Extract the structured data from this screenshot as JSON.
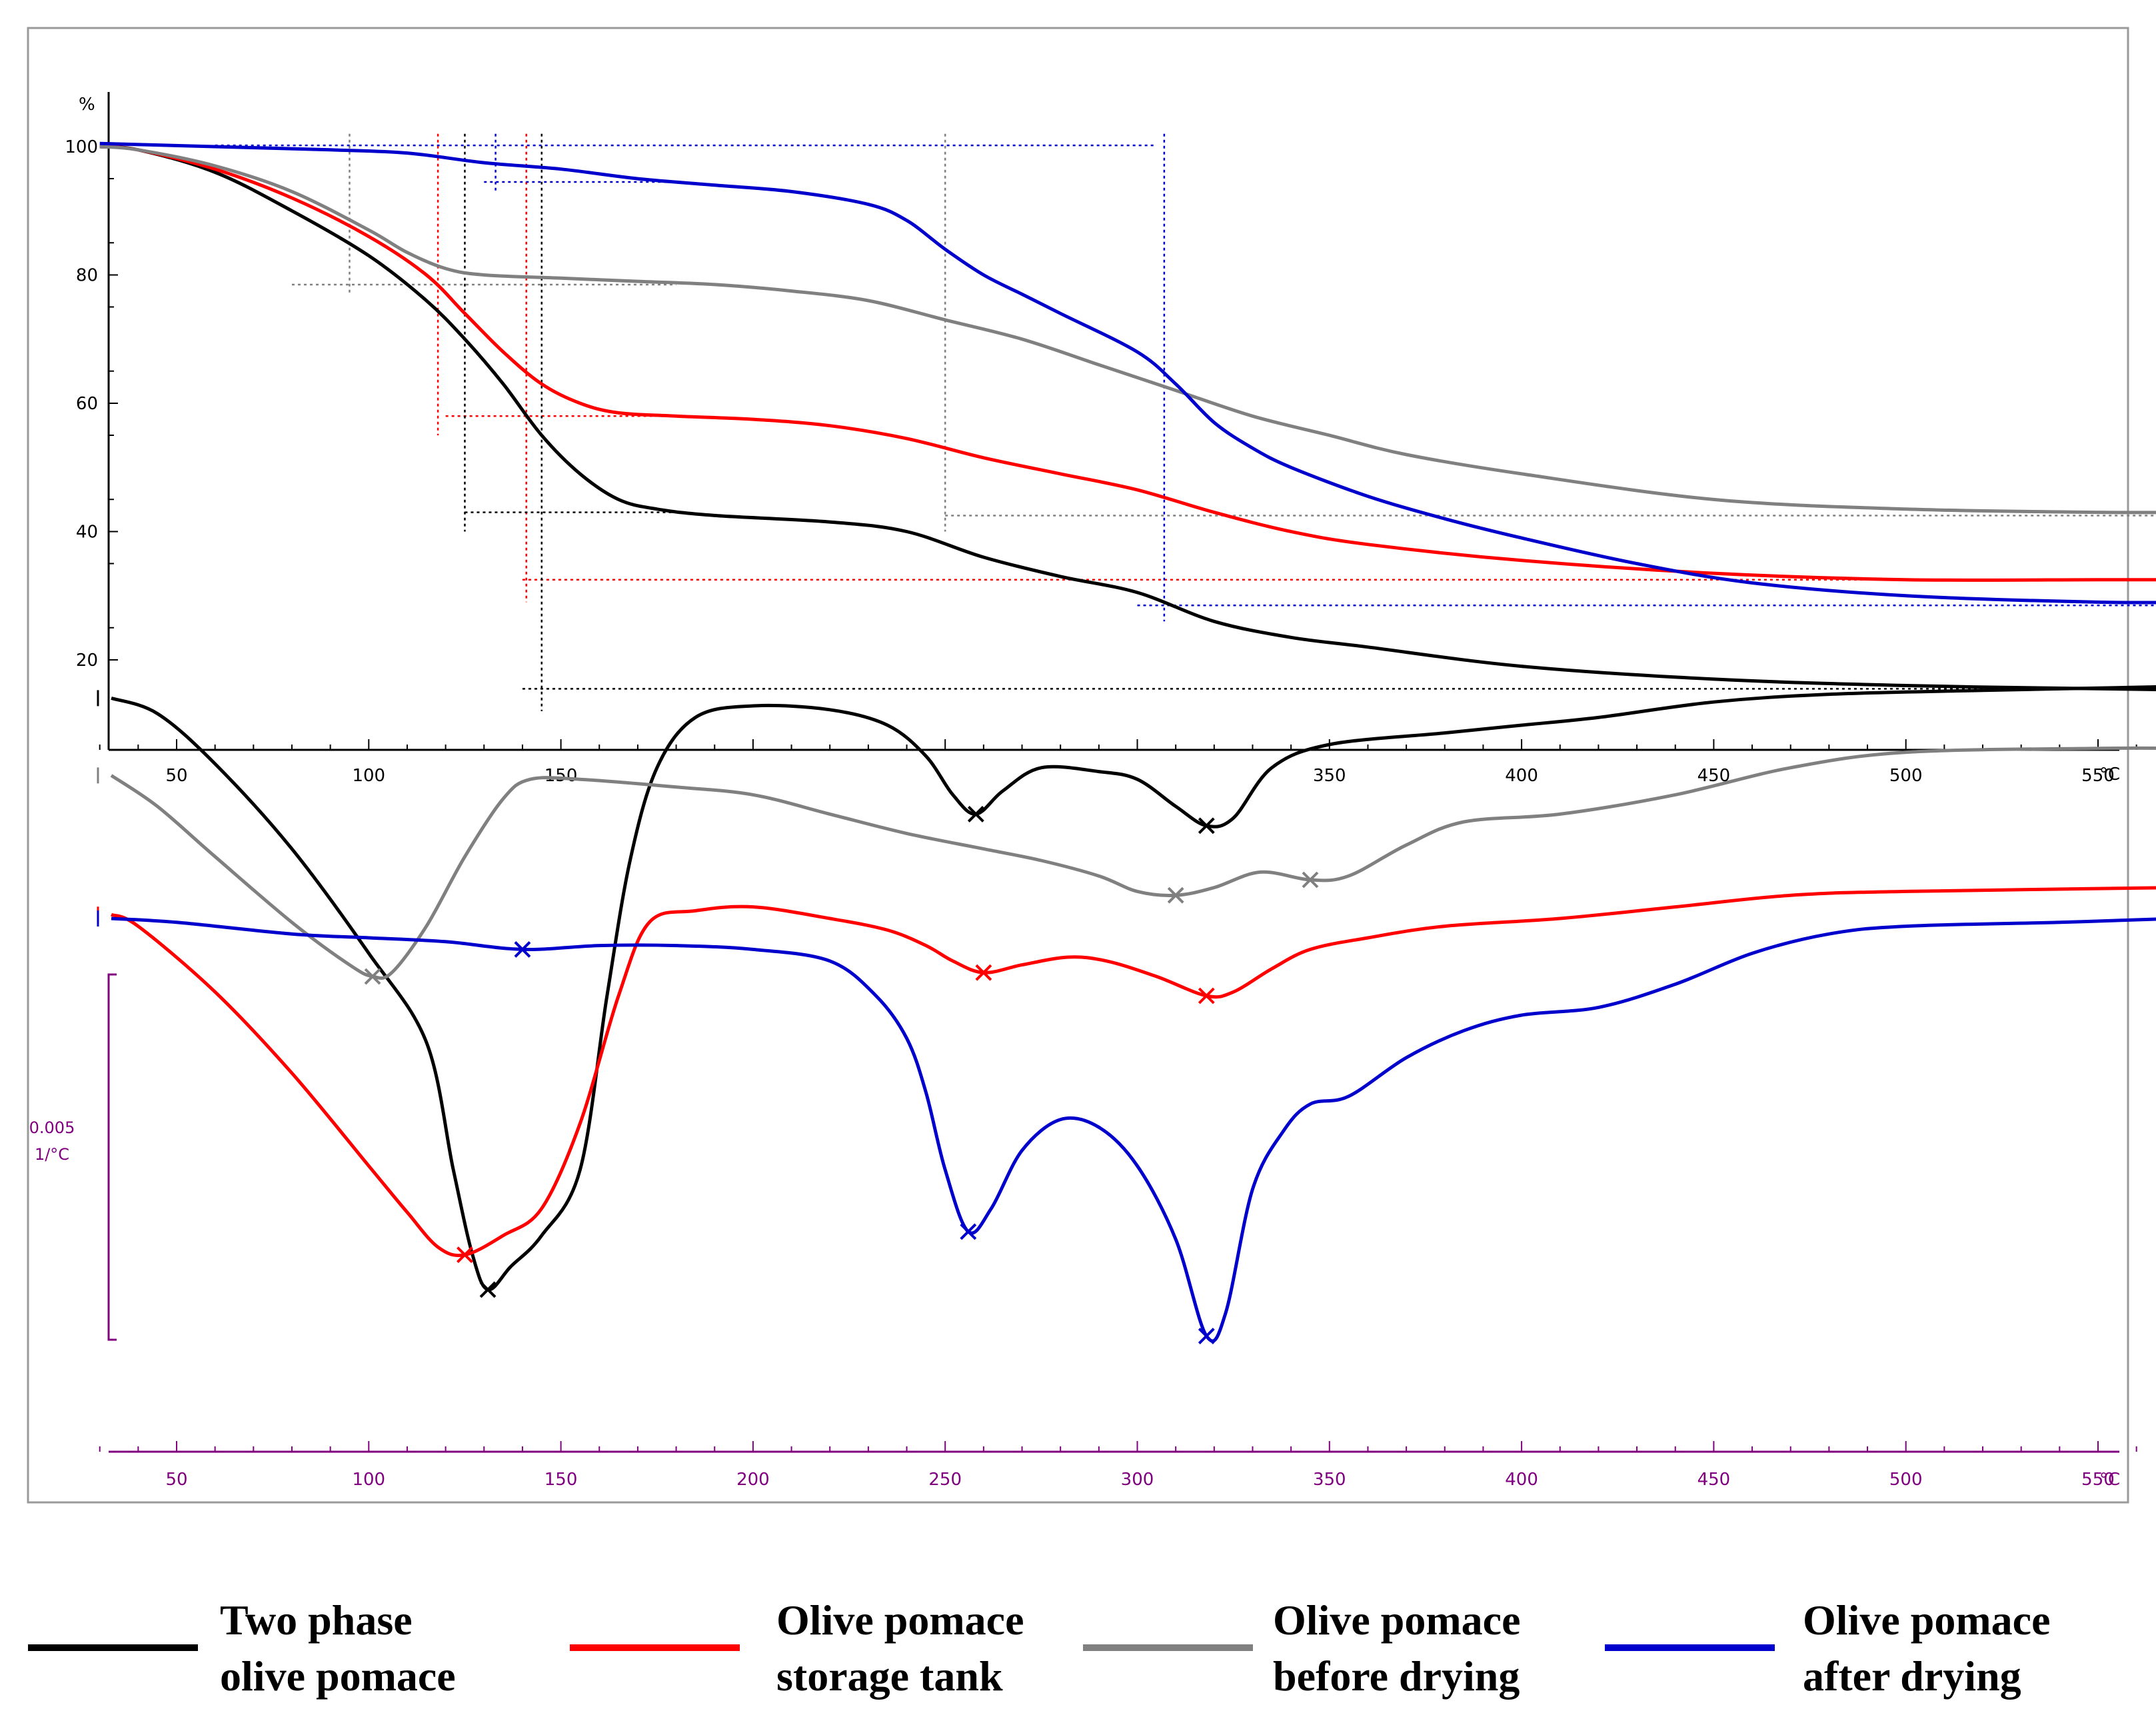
{
  "chart_data": [
    {
      "type": "line",
      "panel": "TGA",
      "title": "",
      "ylabel": "%",
      "xlabel": "°C",
      "xlim": [
        30,
        600
      ],
      "ylim": [
        12,
        102
      ],
      "yticks": [
        20,
        40,
        60,
        80,
        100
      ],
      "xticks": [
        50,
        100,
        150,
        350,
        400,
        450,
        500,
        550
      ],
      "xunit": "°C",
      "grid": false,
      "series": [
        {
          "key": "two_phase",
          "color": "#000000",
          "points": [
            [
              30,
              100
            ],
            [
              40,
              99.5
            ],
            [
              60,
              96
            ],
            [
              80,
              90
            ],
            [
              100,
              83
            ],
            [
              115,
              76
            ],
            [
              125,
              70
            ],
            [
              135,
              63
            ],
            [
              145,
              55
            ],
            [
              155,
              49
            ],
            [
              165,
              45
            ],
            [
              175,
              43.5
            ],
            [
              190,
              42.5
            ],
            [
              220,
              41.5
            ],
            [
              240,
              40
            ],
            [
              260,
              36
            ],
            [
              280,
              33
            ],
            [
              300,
              30.5
            ],
            [
              320,
              26
            ],
            [
              340,
              23.5
            ],
            [
              360,
              22
            ],
            [
              400,
              19
            ],
            [
              450,
              17
            ],
            [
              500,
              16
            ],
            [
              550,
              15.5
            ],
            [
              575,
              15.3
            ]
          ]
        },
        {
          "key": "storage_tank",
          "color": "#ff0000",
          "points": [
            [
              30,
              100
            ],
            [
              40,
              99.5
            ],
            [
              60,
              96.5
            ],
            [
              80,
              92
            ],
            [
              100,
              86
            ],
            [
              115,
              80
            ],
            [
              125,
              74
            ],
            [
              135,
              68
            ],
            [
              145,
              63
            ],
            [
              155,
              60
            ],
            [
              165,
              58.5
            ],
            [
              180,
              58
            ],
            [
              200,
              57.5
            ],
            [
              220,
              56.5
            ],
            [
              240,
              54.5
            ],
            [
              260,
              51.5
            ],
            [
              280,
              49
            ],
            [
              300,
              46.5
            ],
            [
              320,
              43
            ],
            [
              340,
              40
            ],
            [
              360,
              38
            ],
            [
              400,
              35.5
            ],
            [
              450,
              33.5
            ],
            [
              500,
              32.5
            ],
            [
              550,
              32.5
            ],
            [
              575,
              32.5
            ]
          ]
        },
        {
          "key": "before_drying",
          "color": "#808080",
          "points": [
            [
              30,
              100
            ],
            [
              40,
              99.5
            ],
            [
              60,
              97
            ],
            [
              80,
              93
            ],
            [
              100,
              87
            ],
            [
              110,
              83.5
            ],
            [
              120,
              81
            ],
            [
              130,
              80
            ],
            [
              150,
              79.5
            ],
            [
              170,
              79
            ],
            [
              190,
              78.5
            ],
            [
              210,
              77.5
            ],
            [
              230,
              76
            ],
            [
              250,
              73
            ],
            [
              270,
              70
            ],
            [
              290,
              66
            ],
            [
              310,
              62
            ],
            [
              330,
              58
            ],
            [
              350,
              55
            ],
            [
              370,
              52
            ],
            [
              400,
              49
            ],
            [
              450,
              45
            ],
            [
              500,
              43.5
            ],
            [
              550,
              43
            ],
            [
              575,
              43
            ]
          ]
        },
        {
          "key": "after_drying",
          "color": "#0000cc",
          "points": [
            [
              30,
              100.5
            ],
            [
              60,
              100
            ],
            [
              90,
              99.5
            ],
            [
              110,
              99
            ],
            [
              130,
              97.5
            ],
            [
              150,
              96.5
            ],
            [
              170,
              95
            ],
            [
              190,
              94
            ],
            [
              210,
              93
            ],
            [
              230,
              91
            ],
            [
              240,
              88.5
            ],
            [
              250,
              84
            ],
            [
              260,
              80
            ],
            [
              270,
              77
            ],
            [
              280,
              74
            ],
            [
              300,
              68
            ],
            [
              310,
              63
            ],
            [
              320,
              57
            ],
            [
              330,
              53
            ],
            [
              340,
              50
            ],
            [
              360,
              45.5
            ],
            [
              380,
              42
            ],
            [
              400,
              39
            ],
            [
              430,
              35
            ],
            [
              460,
              32
            ],
            [
              500,
              30
            ],
            [
              550,
              29
            ],
            [
              575,
              29
            ]
          ]
        }
      ]
    },
    {
      "type": "line",
      "panel": "DTG",
      "title": "",
      "ylabel": "0.005\n1/°C",
      "ylabel_lines": [
        "0.005",
        "1/°C"
      ],
      "xlabel": "°C",
      "xlim": [
        30,
        600
      ],
      "ylim": [
        -1,
        1
      ],
      "xticks": [
        50,
        100,
        150,
        200,
        250,
        300,
        350,
        400,
        450,
        500,
        550
      ],
      "xunit": "°C",
      "grid": false,
      "note_values_relative": true,
      "series": [
        {
          "key": "two_phase",
          "color": "#000000",
          "points": [
            [
              33,
              0.97
            ],
            [
              45,
              0.93
            ],
            [
              60,
              0.8
            ],
            [
              80,
              0.58
            ],
            [
              100,
              0.31
            ],
            [
              115,
              0.08
            ],
            [
              122,
              -0.25
            ],
            [
              127,
              -0.47
            ],
            [
              131,
              -0.56
            ],
            [
              137,
              -0.5
            ],
            [
              145,
              -0.42
            ],
            [
              155,
              -0.25
            ],
            [
              162,
              0.2
            ],
            [
              168,
              0.55
            ],
            [
              175,
              0.79
            ],
            [
              185,
              0.92
            ],
            [
              200,
              0.95
            ],
            [
              220,
              0.94
            ],
            [
              235,
              0.9
            ],
            [
              245,
              0.82
            ],
            [
              252,
              0.72
            ],
            [
              258,
              0.67
            ],
            [
              265,
              0.73
            ],
            [
              275,
              0.79
            ],
            [
              290,
              0.78
            ],
            [
              300,
              0.76
            ],
            [
              310,
              0.69
            ],
            [
              318,
              0.64
            ],
            [
              325,
              0.66
            ],
            [
              335,
              0.79
            ],
            [
              350,
              0.85
            ],
            [
              380,
              0.88
            ],
            [
              400,
              0.9
            ],
            [
              420,
              0.92
            ],
            [
              450,
              0.96
            ],
            [
              480,
              0.98
            ],
            [
              520,
              0.99
            ],
            [
              570,
              1.0
            ]
          ]
        },
        {
          "key": "before_drying",
          "color": "#808080",
          "points": [
            [
              33,
              0.77
            ],
            [
              45,
              0.69
            ],
            [
              60,
              0.56
            ],
            [
              80,
              0.39
            ],
            [
              95,
              0.28
            ],
            [
              101,
              0.25
            ],
            [
              106,
              0.26
            ],
            [
              115,
              0.38
            ],
            [
              125,
              0.56
            ],
            [
              135,
              0.71
            ],
            [
              142,
              0.76
            ],
            [
              155,
              0.76
            ],
            [
              180,
              0.74
            ],
            [
              200,
              0.72
            ],
            [
              220,
              0.67
            ],
            [
              240,
              0.62
            ],
            [
              260,
              0.58
            ],
            [
              275,
              0.55
            ],
            [
              290,
              0.51
            ],
            [
              300,
              0.47
            ],
            [
              310,
              0.46
            ],
            [
              320,
              0.48
            ],
            [
              332,
              0.52
            ],
            [
              345,
              0.5
            ],
            [
              355,
              0.51
            ],
            [
              370,
              0.59
            ],
            [
              385,
              0.65
            ],
            [
              410,
              0.67
            ],
            [
              440,
              0.72
            ],
            [
              470,
              0.79
            ],
            [
              500,
              0.83
            ],
            [
              550,
              0.84
            ],
            [
              570,
              0.84
            ]
          ]
        },
        {
          "key": "storage_tank",
          "color": "#ff0000",
          "points": [
            [
              33,
              0.41
            ],
            [
              40,
              0.38
            ],
            [
              60,
              0.21
            ],
            [
              80,
              0.0
            ],
            [
              100,
              -0.24
            ],
            [
              110,
              -0.36
            ],
            [
              118,
              -0.45
            ],
            [
              125,
              -0.47
            ],
            [
              135,
              -0.42
            ],
            [
              145,
              -0.35
            ],
            [
              155,
              -0.13
            ],
            [
              165,
              0.2
            ],
            [
              173,
              0.39
            ],
            [
              185,
              0.42
            ],
            [
              200,
              0.43
            ],
            [
              220,
              0.4
            ],
            [
              235,
              0.37
            ],
            [
              245,
              0.33
            ],
            [
              252,
              0.29
            ],
            [
              260,
              0.26
            ],
            [
              270,
              0.28
            ],
            [
              282,
              0.3
            ],
            [
              292,
              0.29
            ],
            [
              305,
              0.25
            ],
            [
              318,
              0.2
            ],
            [
              325,
              0.21
            ],
            [
              335,
              0.27
            ],
            [
              345,
              0.32
            ],
            [
              360,
              0.35
            ],
            [
              380,
              0.38
            ],
            [
              410,
              0.4
            ],
            [
              440,
              0.43
            ],
            [
              470,
              0.46
            ],
            [
              500,
              0.47
            ],
            [
              570,
              0.48
            ]
          ]
        },
        {
          "key": "after_drying",
          "color": "#0000cc",
          "points": [
            [
              33,
              0.4
            ],
            [
              50,
              0.39
            ],
            [
              80,
              0.36
            ],
            [
              100,
              0.35
            ],
            [
              120,
              0.34
            ],
            [
              140,
              0.32
            ],
            [
              160,
              0.33
            ],
            [
              180,
              0.33
            ],
            [
              200,
              0.32
            ],
            [
              220,
              0.29
            ],
            [
              232,
              0.2
            ],
            [
              240,
              0.09
            ],
            [
              245,
              -0.05
            ],
            [
              250,
              -0.25
            ],
            [
              256,
              -0.41
            ],
            [
              262,
              -0.35
            ],
            [
              270,
              -0.2
            ],
            [
              280,
              -0.12
            ],
            [
              290,
              -0.14
            ],
            [
              300,
              -0.24
            ],
            [
              310,
              -0.43
            ],
            [
              318,
              -0.68
            ],
            [
              323,
              -0.62
            ],
            [
              330,
              -0.3
            ],
            [
              338,
              -0.15
            ],
            [
              345,
              -0.08
            ],
            [
              355,
              -0.06
            ],
            [
              370,
              0.04
            ],
            [
              385,
              0.11
            ],
            [
              400,
              0.15
            ],
            [
              420,
              0.17
            ],
            [
              440,
              0.23
            ],
            [
              460,
              0.31
            ],
            [
              480,
              0.36
            ],
            [
              500,
              0.38
            ],
            [
              540,
              0.39
            ],
            [
              570,
              0.4
            ]
          ]
        }
      ]
    }
  ],
  "legend": [
    {
      "key": "two_phase",
      "color": "#000000",
      "lines": [
        "Two phase",
        "olive pomace"
      ]
    },
    {
      "key": "storage_tank",
      "color": "#ff0000",
      "lines": [
        "Olive pomace",
        "storage tank"
      ]
    },
    {
      "key": "before_drying",
      "color": "#808080",
      "lines": [
        "Olive pomace",
        "before drying"
      ]
    },
    {
      "key": "after_drying",
      "color": "#0000cc",
      "lines": [
        "Olive pomace",
        "after drying"
      ]
    }
  ],
  "axis_colors": {
    "tga": "#000000",
    "dtg": "#800080"
  }
}
